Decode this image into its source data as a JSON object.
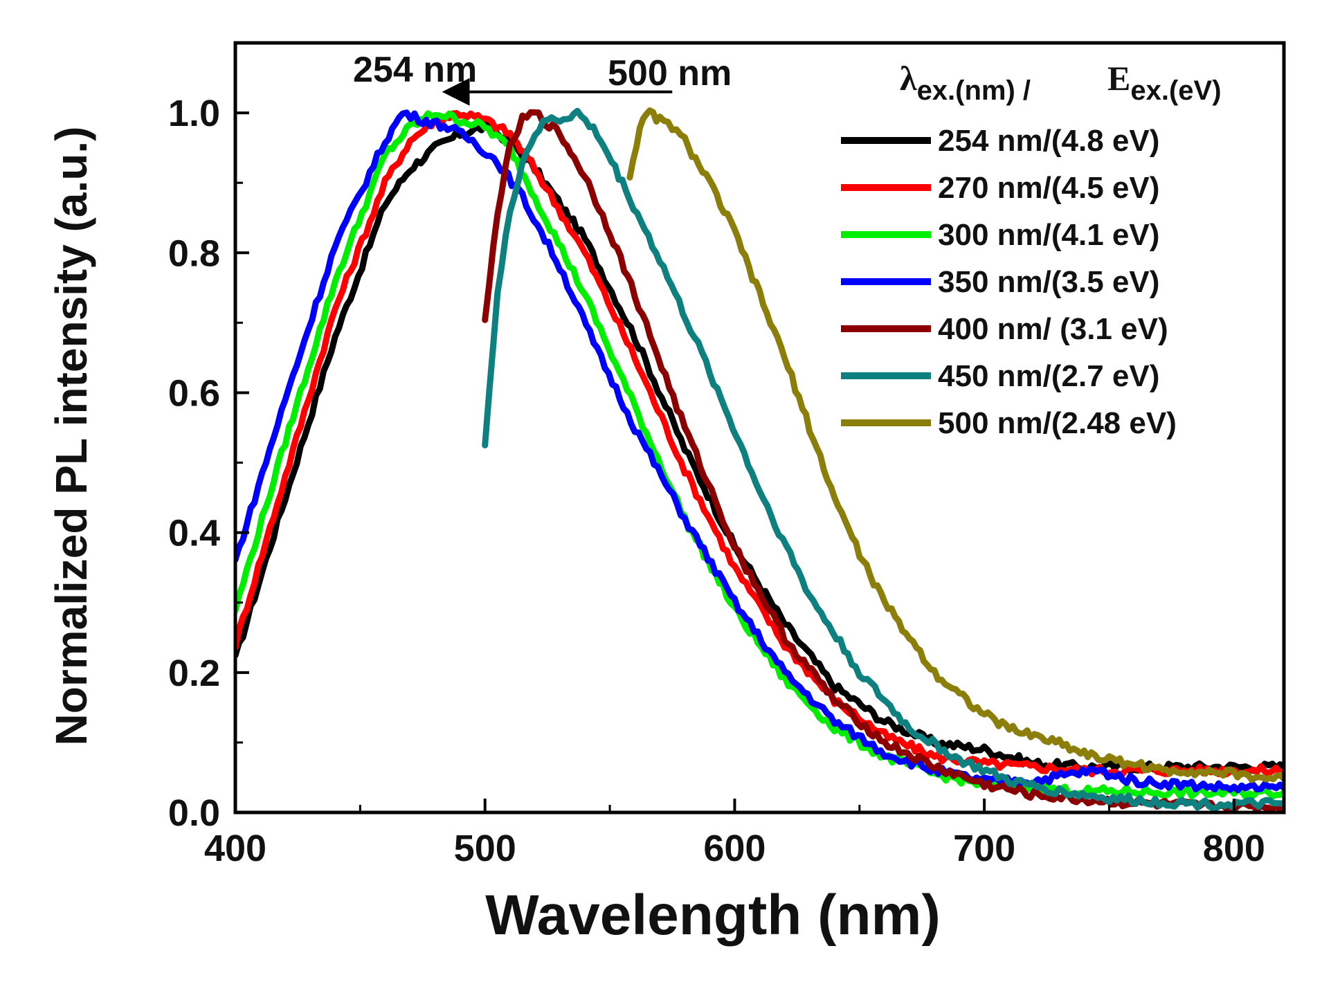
{
  "chart_data": {
    "type": "line",
    "title": "",
    "xlabel": "Wavelength (nm)",
    "ylabel": "Normalized PL intensity (a.u.)",
    "xlim": [
      400,
      820
    ],
    "ylim": [
      0.0,
      1.1
    ],
    "xticks": [
      400,
      500,
      600,
      700,
      800
    ],
    "xtick_labels": [
      "400",
      "500",
      "600",
      "700",
      "800"
    ],
    "yticks": [
      0.0,
      0.2,
      0.4,
      0.6,
      0.8,
      1.0
    ],
    "ytick_labels": [
      "0.0",
      "0.2",
      "0.4",
      "0.6",
      "0.8",
      "1.0"
    ],
    "grid": false,
    "legend_position": "top-right",
    "legend_header": {
      "lambda": "λ",
      "lambda_sub": "ex.(nm) /",
      "e": "E",
      "e_sub": "ex.(eV)"
    },
    "annotations": [
      {
        "text": "254 nm"
      },
      {
        "text": "500 nm"
      }
    ],
    "arrow": {
      "from_x": 575,
      "to_x": 485,
      "y": 1.03
    },
    "series": [
      {
        "name": "254 nm/(4.8 eV)",
        "color": "#000000",
        "x": [
          400,
          420,
          440,
          460,
          470,
          480,
          490,
          500,
          510,
          520,
          540,
          560,
          580,
          600,
          620,
          640,
          660,
          680,
          700,
          720,
          740,
          760,
          780,
          800,
          820
        ],
        "y": [
          0.22,
          0.45,
          0.68,
          0.87,
          0.92,
          0.95,
          0.97,
          0.98,
          0.96,
          0.92,
          0.82,
          0.68,
          0.52,
          0.38,
          0.27,
          0.18,
          0.13,
          0.1,
          0.09,
          0.07,
          0.065,
          0.065,
          0.065,
          0.065,
          0.065
        ]
      },
      {
        "name": "270 nm/(4.5 eV)",
        "color": "#ff0000",
        "x": [
          400,
          420,
          440,
          460,
          470,
          480,
          490,
          500,
          510,
          520,
          540,
          560,
          580,
          600,
          620,
          640,
          660,
          680,
          700,
          720,
          740,
          760,
          780,
          800,
          820
        ],
        "y": [
          0.24,
          0.48,
          0.72,
          0.9,
          0.96,
          0.99,
          1.0,
          0.99,
          0.97,
          0.92,
          0.8,
          0.65,
          0.49,
          0.35,
          0.24,
          0.16,
          0.11,
          0.08,
          0.07,
          0.065,
          0.06,
          0.06,
          0.06,
          0.06,
          0.06
        ]
      },
      {
        "name": "300 nm/(4.1 eV)",
        "color": "#00ee00",
        "x": [
          400,
          420,
          440,
          460,
          470,
          480,
          490,
          500,
          510,
          520,
          540,
          560,
          580,
          600,
          620,
          640,
          660,
          680,
          700,
          720,
          740,
          760,
          780,
          800,
          820
        ],
        "y": [
          0.29,
          0.53,
          0.76,
          0.94,
          0.98,
          1.0,
          0.99,
          0.98,
          0.95,
          0.88,
          0.74,
          0.58,
          0.42,
          0.29,
          0.19,
          0.12,
          0.08,
          0.055,
          0.04,
          0.035,
          0.03,
          0.03,
          0.028,
          0.028,
          0.028
        ]
      },
      {
        "name": "350 nm/(3.5 eV)",
        "color": "#0000ff",
        "x": [
          400,
          420,
          440,
          460,
          467,
          475,
          485,
          495,
          505,
          515,
          530,
          545,
          560,
          580,
          600,
          620,
          640,
          660,
          680,
          700,
          720,
          735,
          745,
          760,
          780,
          800,
          820
        ],
        "y": [
          0.36,
          0.59,
          0.81,
          0.96,
          1.0,
          0.99,
          0.98,
          0.96,
          0.93,
          0.88,
          0.78,
          0.66,
          0.55,
          0.42,
          0.3,
          0.2,
          0.13,
          0.085,
          0.06,
          0.045,
          0.045,
          0.055,
          0.06,
          0.045,
          0.04,
          0.035,
          0.035
        ]
      },
      {
        "name": "400 nm/ (3.1 eV)",
        "color": "#8b0000",
        "x": [
          500,
          505,
          510,
          515,
          520,
          530,
          540,
          550,
          560,
          580,
          600,
          620,
          640,
          660,
          680,
          700,
          720,
          740,
          760,
          780,
          800,
          820
        ],
        "y": [
          0.7,
          0.86,
          0.95,
          0.99,
          1.0,
          0.97,
          0.91,
          0.83,
          0.74,
          0.55,
          0.38,
          0.25,
          0.16,
          0.1,
          0.065,
          0.04,
          0.025,
          0.018,
          0.013,
          0.01,
          0.008,
          0.008
        ]
      },
      {
        "name": "450 nm/(2.7 eV)",
        "color": "#0e8080",
        "x": [
          500,
          505,
          510,
          515,
          520,
          525,
          530,
          537,
          545,
          555,
          570,
          590,
          610,
          630,
          650,
          670,
          690,
          710,
          730,
          750,
          770,
          790,
          810,
          820
        ],
        "y": [
          0.53,
          0.74,
          0.86,
          0.93,
          0.97,
          0.99,
          0.99,
          1.0,
          0.97,
          0.9,
          0.79,
          0.63,
          0.46,
          0.31,
          0.2,
          0.12,
          0.075,
          0.045,
          0.03,
          0.02,
          0.015,
          0.012,
          0.012,
          0.012
        ]
      },
      {
        "name": "500 nm/(2.48 eV)",
        "color": "#8c7e0a",
        "x": [
          558,
          562,
          566,
          570,
          575,
          580,
          590,
          600,
          610,
          620,
          630,
          640,
          650,
          660,
          670,
          680,
          690,
          700,
          710,
          720,
          730,
          740,
          750,
          760,
          770,
          780,
          790,
          800,
          810,
          820
        ],
        "y": [
          0.91,
          0.98,
          1.0,
          0.99,
          0.98,
          0.96,
          0.9,
          0.83,
          0.74,
          0.65,
          0.55,
          0.45,
          0.37,
          0.3,
          0.25,
          0.2,
          0.17,
          0.14,
          0.12,
          0.11,
          0.1,
          0.085,
          0.075,
          0.07,
          0.06,
          0.06,
          0.058,
          0.055,
          0.05,
          0.048
        ]
      }
    ]
  }
}
